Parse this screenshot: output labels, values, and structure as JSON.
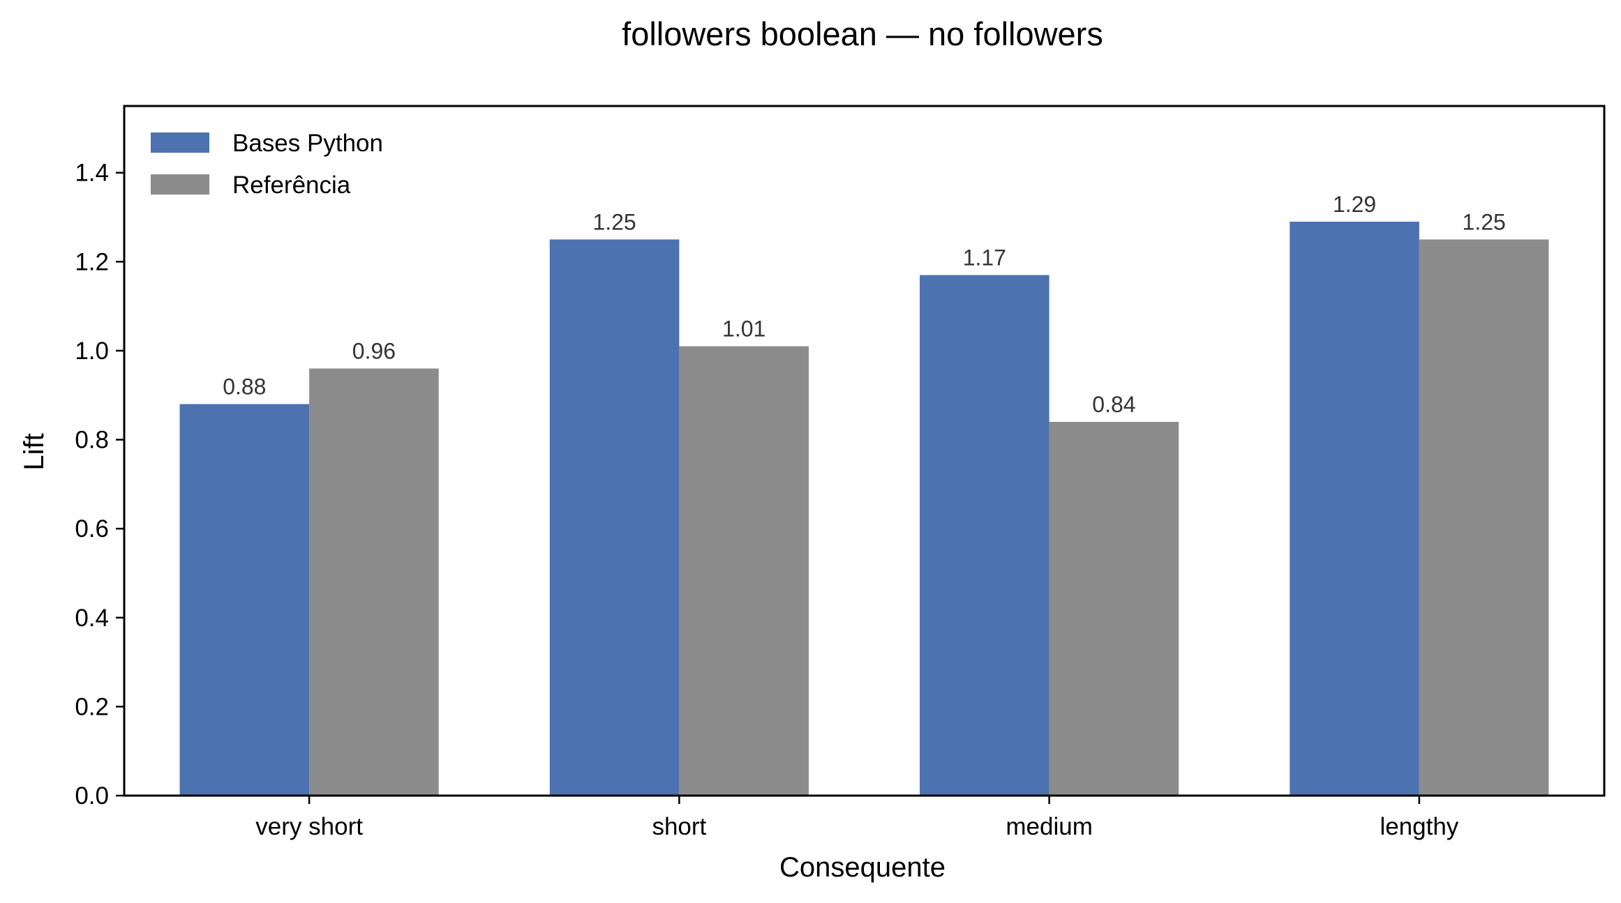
{
  "chart_data": {
    "type": "bar",
    "title": "followers boolean — no followers",
    "xlabel": "Consequente",
    "ylabel": "Lift",
    "categories": [
      "very short",
      "short",
      "medium",
      "lengthy"
    ],
    "series": [
      {
        "name": "Bases Python",
        "values": [
          0.88,
          1.25,
          1.17,
          1.29
        ],
        "labels": [
          "0.88",
          "1.25",
          "1.17",
          "1.29"
        ],
        "color": "#4c72b0"
      },
      {
        "name": "Referência",
        "values": [
          0.96,
          1.01,
          0.84,
          1.25
        ],
        "labels": [
          "0.96",
          "1.01",
          "0.84",
          "1.25"
        ],
        "color": "#8c8c8c"
      }
    ],
    "ylim": [
      0,
      1.55
    ],
    "yticks": [
      0.0,
      0.2,
      0.4,
      0.6,
      0.8,
      1.0,
      1.2,
      1.4
    ],
    "ytick_labels": [
      "0.0",
      "0.2",
      "0.4",
      "0.6",
      "0.8",
      "1.0",
      "1.2",
      "1.4"
    ],
    "grid": false,
    "legend_position": "top-left"
  }
}
